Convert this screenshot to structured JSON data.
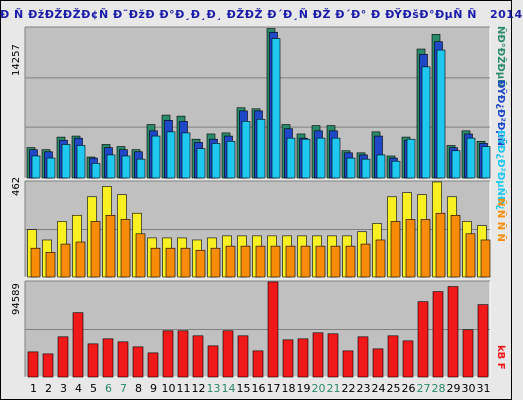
{
  "title": "Ð Ñ ÐžÐŽÐŽÐ¢Ñ Ð˜ÐžÐ Ð°Ð¸Ð¸Ð¸ ÐŽÐŽ Ð´Ð¸Ñ ÐŽ Ð´Ð° Ð ÐŸÐšÐ°ÐµÑ Ñ   2014",
  "panels": {
    "top": {
      "ymax_label": "14257"
    },
    "middle": {
      "ymax_label": "462"
    },
    "bottom": {
      "ymax_label": "94589"
    }
  },
  "legend": {
    "top_right_1": "ÑÐ°ÐŽÐµÑ",
    "top_right_2": "ÐŸÐ¿Ð²ÐµÑ",
    "top_right_3": "ÐŸÐ¿Ð²ÐµÑÐ¿",
    "mid_right": "Ñ Ñ Ñ Ñ",
    "bottom_right": "kB F"
  },
  "colors": {
    "green": "#2a8a6a",
    "blue": "#1e48c8",
    "cyan": "#1ec8f0",
    "yellow": "#f8f020",
    "orange": "#f88c08",
    "red": "#f01818",
    "weekend_label": "#2a8a6a",
    "grid": "#808080"
  },
  "chart_data": [
    {
      "type": "bar",
      "title": "",
      "categories": [
        "1",
        "2",
        "3",
        "4",
        "5",
        "6",
        "7",
        "8",
        "9",
        "10",
        "11",
        "12",
        "13",
        "14",
        "15",
        "16",
        "17",
        "18",
        "19",
        "20",
        "21",
        "22",
        "23",
        "24",
        "25",
        "26",
        "27",
        "28",
        "29",
        "30",
        "31"
      ],
      "weekend_days": [
        "6",
        "7",
        "13",
        "14",
        "20",
        "21",
        "27",
        "28"
      ],
      "ylim": [
        0,
        14257
      ],
      "series": [
        {
          "values": [
            2900,
            2700,
            3900,
            4000,
            2000,
            3200,
            3000,
            2700,
            5100,
            6000,
            5900,
            3700,
            4200,
            4300,
            6700,
            6600,
            14257,
            5100,
            4200,
            5000,
            5000,
            2600,
            2400,
            4400,
            2100,
            3900,
            12300,
            13700,
            3100,
            4500,
            3500
          ]
        },
        {
          "values": [
            2700,
            2500,
            3600,
            3800,
            1900,
            2900,
            2700,
            2500,
            4500,
            5500,
            5400,
            3400,
            3700,
            4000,
            6400,
            6400,
            13900,
            4700,
            3800,
            4500,
            4500,
            2400,
            2200,
            4000,
            1900,
            3600,
            11800,
            13000,
            2900,
            4200,
            3300
          ]
        },
        {
          "values": [
            2100,
            1900,
            3200,
            3100,
            1400,
            2200,
            2100,
            1800,
            4000,
            4400,
            4300,
            2800,
            3300,
            3500,
            5400,
            5600,
            13300,
            3800,
            3700,
            3800,
            3800,
            1900,
            1800,
            2200,
            1600,
            3700,
            10600,
            12200,
            2600,
            3800,
            3000
          ]
        }
      ]
    },
    {
      "type": "bar",
      "title": "",
      "categories": [
        "1",
        "2",
        "3",
        "4",
        "5",
        "6",
        "7",
        "8",
        "9",
        "10",
        "11",
        "12",
        "13",
        "14",
        "15",
        "16",
        "17",
        "18",
        "19",
        "20",
        "21",
        "22",
        "23",
        "24",
        "25",
        "26",
        "27",
        "28",
        "29",
        "30",
        "31"
      ],
      "ylim": [
        0,
        462
      ],
      "series": [
        {
          "values": [
            230,
            180,
            270,
            300,
            390,
            440,
            400,
            310,
            190,
            190,
            190,
            180,
            190,
            200,
            200,
            200,
            200,
            200,
            200,
            200,
            200,
            200,
            220,
            260,
            390,
            410,
            400,
            462,
            390,
            270,
            250
          ]
        },
        {
          "values": [
            140,
            120,
            160,
            170,
            270,
            300,
            280,
            210,
            140,
            140,
            140,
            130,
            140,
            150,
            150,
            150,
            150,
            150,
            150,
            150,
            150,
            150,
            160,
            180,
            270,
            280,
            280,
            310,
            300,
            210,
            180
          ]
        }
      ]
    },
    {
      "type": "bar",
      "title": "",
      "categories": [
        "1",
        "2",
        "3",
        "4",
        "5",
        "6",
        "7",
        "8",
        "9",
        "10",
        "11",
        "12",
        "13",
        "14",
        "15",
        "16",
        "17",
        "18",
        "19",
        "20",
        "21",
        "22",
        "23",
        "24",
        "25",
        "26",
        "27",
        "28",
        "29",
        "30",
        "31"
      ],
      "ylim": [
        0,
        94589
      ],
      "series": [
        {
          "values": [
            25000,
            23000,
            40000,
            64000,
            33000,
            38000,
            35000,
            30000,
            24000,
            46000,
            46000,
            41000,
            31000,
            46000,
            41000,
            26000,
            94589,
            37000,
            38000,
            44000,
            43000,
            26000,
            40000,
            28000,
            41000,
            36000,
            75000,
            85000,
            90000,
            47000,
            72000
          ]
        }
      ]
    }
  ]
}
